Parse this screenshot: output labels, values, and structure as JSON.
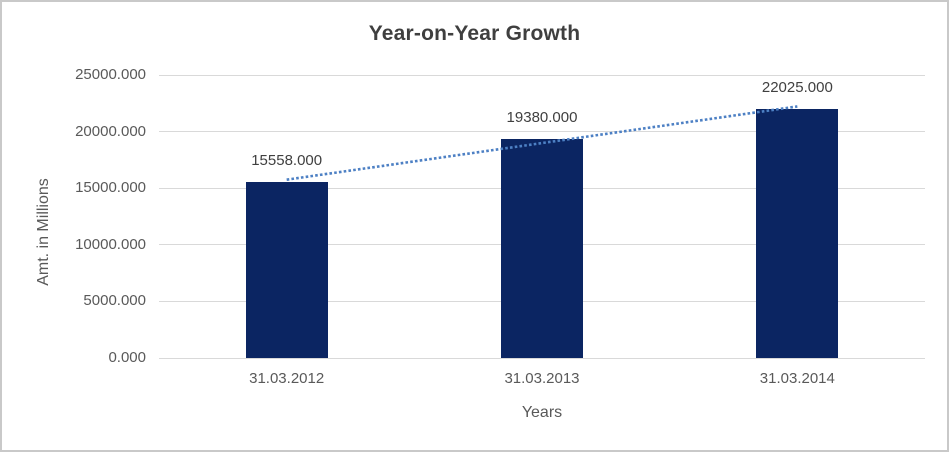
{
  "chart_data": {
    "type": "bar",
    "title": "Year-on-Year Growth",
    "xlabel": "Years",
    "ylabel": "Amt. in Millions",
    "categories": [
      "31.03.2012",
      "31.03.2013",
      "31.03.2014"
    ],
    "values": [
      15558,
      19380,
      22025
    ],
    "data_labels": [
      "15558.000",
      "19380.000",
      "22025.000"
    ],
    "ylim": [
      0,
      25000
    ],
    "yticks": [
      0,
      5000,
      10000,
      15000,
      20000,
      25000
    ],
    "ytick_labels": [
      "0.000",
      "5000.000",
      "10000.000",
      "15000.000",
      "20000.000",
      "25000.000"
    ],
    "grid": true,
    "legend": "none",
    "trendline": {
      "type": "linear",
      "style": "dotted",
      "fitted_start": 15754,
      "fitted_end": 22221
    },
    "colors": {
      "bar": "#0b2562",
      "trendline": "#4d80c4",
      "gridline": "#d9d9d9",
      "tick_text": "#595959",
      "title_text": "#3f3f3f",
      "data_label_text": "#404040",
      "border": "#c9c9c9",
      "background": "#ffffff"
    }
  }
}
